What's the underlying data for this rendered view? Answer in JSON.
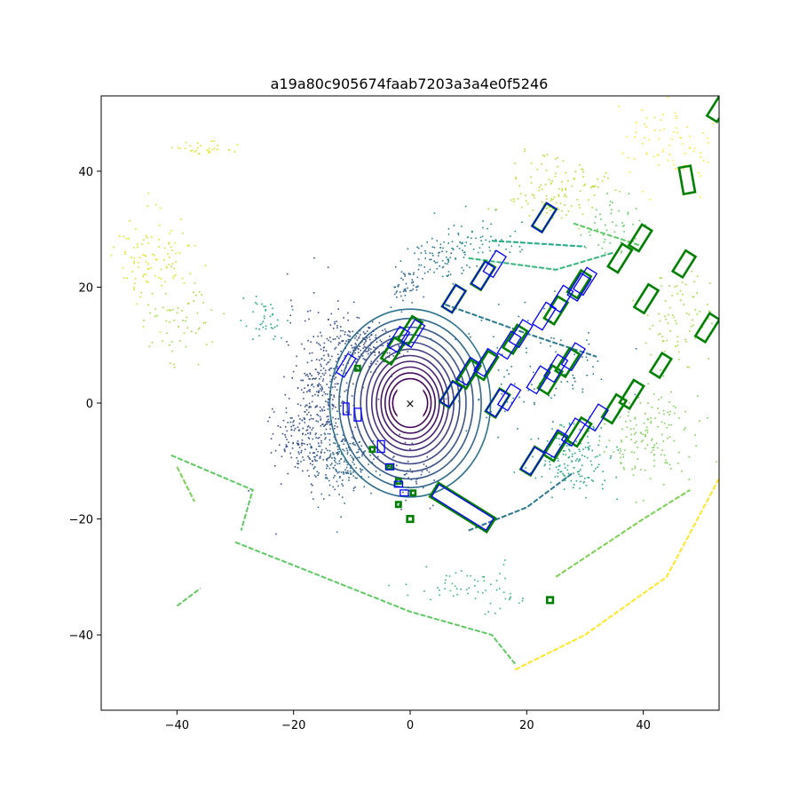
{
  "chart_data": {
    "type": "scatter",
    "title": "a19a80c905674faab7203a3a4e0f5246",
    "xlabel": "",
    "ylabel": "",
    "xlim": [
      -53,
      53
    ],
    "ylim": [
      -53,
      53
    ],
    "x_ticks": [
      -40,
      -20,
      0,
      20,
      40
    ],
    "y_ticks": [
      -40,
      -20,
      0,
      20,
      40
    ],
    "x_tick_labels": [
      "−40",
      "−20",
      "0",
      "20",
      "40"
    ],
    "y_tick_labels": [
      "−40",
      "−20",
      "0",
      "20",
      "40"
    ],
    "grid": false,
    "colormap": [
      "#440154",
      "#3b528b",
      "#21918c",
      "#5ec962",
      "#fde725"
    ],
    "ego_marker": {
      "x": 0,
      "y": 0,
      "symbol": "×"
    },
    "rings": [
      {
        "rx": 3,
        "ry": 3.3
      },
      {
        "rx": 3.6,
        "ry": 4.2
      },
      {
        "rx": 4.3,
        "ry": 5.2
      },
      {
        "rx": 5.0,
        "ry": 6.2
      },
      {
        "rx": 5.8,
        "ry": 7.2
      },
      {
        "rx": 6.6,
        "ry": 8.2
      },
      {
        "rx": 7.5,
        "ry": 9.3
      },
      {
        "rx": 8.5,
        "ry": 10.5
      },
      {
        "rx": 9.6,
        "ry": 11.8
      },
      {
        "rx": 10.8,
        "ry": 13.1
      },
      {
        "rx": 12.2,
        "ry": 14.6
      },
      {
        "rx": 13.8,
        "ry": 16.2
      }
    ],
    "wall_lines": [
      {
        "points": [
          [
            -30,
            -24
          ],
          [
            -15,
            -30
          ],
          [
            0,
            -36
          ],
          [
            14,
            -40
          ],
          [
            18,
            -45
          ]
        ],
        "color": "#5ec962"
      },
      {
        "points": [
          [
            18,
            -46
          ],
          [
            30,
            -40
          ],
          [
            44,
            -30
          ],
          [
            53,
            -13
          ]
        ],
        "color": "#fde725"
      },
      {
        "points": [
          [
            -41,
            -9
          ],
          [
            -27,
            -15
          ],
          [
            -29,
            -22
          ]
        ],
        "color": "#5ec962"
      },
      {
        "points": [
          [
            -40,
            -11
          ],
          [
            -37,
            -17
          ]
        ],
        "color": "#7ad151"
      },
      {
        "points": [
          [
            25,
            -30
          ],
          [
            40,
            -20
          ],
          [
            48,
            -15
          ]
        ],
        "color": "#7ad151"
      },
      {
        "points": [
          [
            -40,
            -35
          ],
          [
            -36,
            -32
          ]
        ],
        "color": "#5ec962"
      },
      {
        "points": [
          [
            6,
            17
          ],
          [
            20,
            12
          ],
          [
            32,
            8
          ]
        ],
        "color": "#2a788e"
      },
      {
        "points": [
          [
            10,
            25
          ],
          [
            25,
            23
          ],
          [
            35,
            26
          ]
        ],
        "color": "#35b779"
      },
      {
        "points": [
          [
            14,
            28
          ],
          [
            30,
            27
          ]
        ],
        "color": "#22a884"
      },
      {
        "points": [
          [
            10,
            -22
          ],
          [
            20,
            -18
          ],
          [
            28,
            -12
          ]
        ],
        "color": "#2a788e"
      },
      {
        "points": [
          [
            28,
            31
          ],
          [
            40,
            27
          ]
        ],
        "color": "#5ec962"
      }
    ],
    "point_clusters": [
      {
        "cx": -15,
        "cy": 2,
        "sx": 3,
        "sy": 7,
        "n": 350,
        "color": "#3b528b"
      },
      {
        "cx": -12,
        "cy": -10,
        "sx": 3,
        "sy": 3,
        "n": 200,
        "color": "#31688e"
      },
      {
        "cx": -8,
        "cy": 10,
        "sx": 3,
        "sy": 2,
        "n": 180,
        "color": "#3b528b"
      },
      {
        "cx": -20,
        "cy": -6,
        "sx": 2,
        "sy": 3,
        "n": 100,
        "color": "#3b528b"
      },
      {
        "cx": 5,
        "cy": 25,
        "sx": 3,
        "sy": 2,
        "n": 80,
        "color": "#2a788e"
      },
      {
        "cx": 12,
        "cy": 28,
        "sx": 4,
        "sy": 2,
        "n": 60,
        "color": "#21918c"
      },
      {
        "cx": -1,
        "cy": 20,
        "sx": 1.5,
        "sy": 1.5,
        "n": 50,
        "color": "#31688e"
      },
      {
        "cx": 25,
        "cy": 37,
        "sx": 4,
        "sy": 3,
        "n": 120,
        "color": "#b5de2b"
      },
      {
        "cx": -44,
        "cy": 25,
        "sx": 3,
        "sy": 4,
        "n": 100,
        "color": "#dde318"
      },
      {
        "cx": -40,
        "cy": 15,
        "sx": 3,
        "sy": 4,
        "n": 60,
        "color": "#a0da39"
      },
      {
        "cx": -25,
        "cy": 15,
        "sx": 2,
        "sy": 2,
        "n": 40,
        "color": "#22a884"
      },
      {
        "cx": 28,
        "cy": -10,
        "sx": 4,
        "sy": 3,
        "n": 150,
        "color": "#22a884"
      },
      {
        "cx": 42,
        "cy": -5,
        "sx": 4,
        "sy": 4,
        "n": 150,
        "color": "#7ad151"
      },
      {
        "cx": 46,
        "cy": 15,
        "sx": 3,
        "sy": 4,
        "n": 80,
        "color": "#a0da39"
      },
      {
        "cx": 45,
        "cy": 45,
        "sx": 4,
        "sy": 4,
        "n": 80,
        "color": "#fde725"
      },
      {
        "cx": -35,
        "cy": 44,
        "sx": 3,
        "sy": 0.5,
        "n": 30,
        "color": "#dde318"
      },
      {
        "cx": 10,
        "cy": -32,
        "sx": 5,
        "sy": 2,
        "n": 60,
        "color": "#35b779"
      },
      {
        "cx": 0,
        "cy": -12,
        "sx": 2,
        "sy": 3,
        "n": 50,
        "color": "#3b528b"
      },
      {
        "cx": 35,
        "cy": 30,
        "sx": 3,
        "sy": 3,
        "n": 50,
        "color": "#5ec962"
      },
      {
        "cx": 20,
        "cy": 5,
        "sx": 8,
        "sy": 5,
        "n": 100,
        "color": "#2a788e"
      }
    ],
    "gt_boxes": [
      {
        "x": 23,
        "y": 32,
        "w": 2.0,
        "l": 4.6,
        "yaw": 58
      },
      {
        "x": 12.5,
        "y": 22,
        "w": 2.0,
        "l": 4.6,
        "yaw": 58
      },
      {
        "x": 7.5,
        "y": 18,
        "w": 2.0,
        "l": 4.4,
        "yaw": 58
      },
      {
        "x": 25,
        "y": 16,
        "w": 2.0,
        "l": 4.4,
        "yaw": 58
      },
      {
        "x": 29,
        "y": 20.5,
        "w": 2.0,
        "l": 4.4,
        "yaw": 58
      },
      {
        "x": 0,
        "y": 12.5,
        "w": 2.0,
        "l": 4.6,
        "yaw": 58
      },
      {
        "x": -3,
        "y": 9,
        "w": 2.0,
        "l": 4.2,
        "yaw": 58
      },
      {
        "x": 10,
        "y": 5,
        "w": 2.0,
        "l": 4.6,
        "yaw": 58
      },
      {
        "x": 13,
        "y": 6.5,
        "w": 2.0,
        "l": 4.6,
        "yaw": 58
      },
      {
        "x": 18,
        "y": 11,
        "w": 2.0,
        "l": 4.6,
        "yaw": 58
      },
      {
        "x": 15,
        "y": 0,
        "w": 2.0,
        "l": 4.6,
        "yaw": 58
      },
      {
        "x": 24,
        "y": 4,
        "w": 2.0,
        "l": 4.6,
        "yaw": 58
      },
      {
        "x": 27,
        "y": 7,
        "w": 2.0,
        "l": 4.6,
        "yaw": 58
      },
      {
        "x": 7,
        "y": 1.5,
        "w": 1.9,
        "l": 4.2,
        "yaw": 58
      },
      {
        "x": 21,
        "y": -10,
        "w": 2.0,
        "l": 4.6,
        "yaw": 58
      },
      {
        "x": 25,
        "y": -7.5,
        "w": 2.0,
        "l": 4.6,
        "yaw": 58
      },
      {
        "x": 29,
        "y": -5,
        "w": 2.0,
        "l": 4.6,
        "yaw": 58
      },
      {
        "x": 35,
        "y": -1,
        "w": 2.0,
        "l": 4.6,
        "yaw": 58
      },
      {
        "x": 38,
        "y": 1.5,
        "w": 2.0,
        "l": 4.6,
        "yaw": 58
      },
      {
        "x": 40.5,
        "y": 18,
        "w": 2.0,
        "l": 4.6,
        "yaw": 58
      },
      {
        "x": 36,
        "y": 25,
        "w": 2.0,
        "l": 4.6,
        "yaw": 58
      },
      {
        "x": 39.5,
        "y": 28.5,
        "w": 2.0,
        "l": 4.2,
        "yaw": 58
      },
      {
        "x": 47,
        "y": 24,
        "w": 2.0,
        "l": 4.2,
        "yaw": 58
      },
      {
        "x": 43,
        "y": 6.5,
        "w": 1.9,
        "l": 3.8,
        "yaw": 58
      },
      {
        "x": 51,
        "y": 13,
        "w": 2.0,
        "l": 4.6,
        "yaw": 58
      },
      {
        "x": 47.5,
        "y": 38.5,
        "w": 2.0,
        "l": 4.6,
        "yaw": 100
      },
      {
        "x": 53,
        "y": 51,
        "w": 2.0,
        "l": 4.6,
        "yaw": 58
      },
      {
        "x": 9,
        "y": -18,
        "w": 2.8,
        "l": 11.5,
        "yaw": -32
      },
      {
        "x": -6.5,
        "y": -8,
        "w": 0.8,
        "l": 0.8,
        "yaw": 0
      },
      {
        "x": -3.5,
        "y": -11,
        "w": 0.8,
        "l": 0.8,
        "yaw": 0
      },
      {
        "x": -2,
        "y": -13.5,
        "w": 0.8,
        "l": 0.8,
        "yaw": 0
      },
      {
        "x": 0,
        "y": -20,
        "w": 1.0,
        "l": 1.0,
        "yaw": 0
      },
      {
        "x": -2,
        "y": -17.5,
        "w": 0.8,
        "l": 0.8,
        "yaw": 0
      },
      {
        "x": 0.5,
        "y": -15.5,
        "w": 0.8,
        "l": 0.8,
        "yaw": 0
      },
      {
        "x": -9,
        "y": 6,
        "w": 0.8,
        "l": 0.8,
        "yaw": 0
      },
      {
        "x": 24,
        "y": -34,
        "w": 1.0,
        "l": 1.0,
        "yaw": 0
      }
    ],
    "pred_boxes": [
      {
        "x": 23,
        "y": 32,
        "w": 2.0,
        "l": 4.8,
        "yaw": 58
      },
      {
        "x": 14.5,
        "y": 24,
        "w": 2.0,
        "l": 4.2,
        "yaw": 58
      },
      {
        "x": 12.5,
        "y": 22,
        "w": 2.0,
        "l": 4.4,
        "yaw": 58
      },
      {
        "x": 7.5,
        "y": 18,
        "w": 2.0,
        "l": 4.4,
        "yaw": 58
      },
      {
        "x": 23,
        "y": 15,
        "w": 2.0,
        "l": 4.4,
        "yaw": 58
      },
      {
        "x": 26,
        "y": 18,
        "w": 2.0,
        "l": 4.2,
        "yaw": 58
      },
      {
        "x": 30,
        "y": 21,
        "w": 2.0,
        "l": 4.4,
        "yaw": 58
      },
      {
        "x": 29,
        "y": 20,
        "w": 2.0,
        "l": 4.4,
        "yaw": 58
      },
      {
        "x": 0.5,
        "y": 12,
        "w": 2.0,
        "l": 4.4,
        "yaw": 58
      },
      {
        "x": -2,
        "y": 11,
        "w": 2.0,
        "l": 4.0,
        "yaw": 58
      },
      {
        "x": 10,
        "y": 5.5,
        "w": 2.0,
        "l": 4.4,
        "yaw": 58
      },
      {
        "x": 13,
        "y": 7,
        "w": 2.0,
        "l": 4.4,
        "yaw": 58
      },
      {
        "x": 17,
        "y": 10,
        "w": 2.0,
        "l": 4.4,
        "yaw": 58
      },
      {
        "x": 19,
        "y": 12,
        "w": 2.0,
        "l": 4.4,
        "yaw": 58
      },
      {
        "x": 15,
        "y": 0,
        "w": 2.0,
        "l": 4.4,
        "yaw": 58
      },
      {
        "x": 17,
        "y": 1,
        "w": 2.0,
        "l": 4.2,
        "yaw": 58
      },
      {
        "x": 22,
        "y": 4,
        "w": 2.0,
        "l": 4.4,
        "yaw": 58
      },
      {
        "x": 25,
        "y": 6,
        "w": 2.0,
        "l": 4.4,
        "yaw": 58
      },
      {
        "x": 28,
        "y": 8,
        "w": 2.0,
        "l": 4.4,
        "yaw": 58
      },
      {
        "x": 7,
        "y": 1.5,
        "w": 1.9,
        "l": 4.0,
        "yaw": 58
      },
      {
        "x": 21,
        "y": -10,
        "w": 2.0,
        "l": 4.4,
        "yaw": 58
      },
      {
        "x": 25,
        "y": -7,
        "w": 2.0,
        "l": 4.4,
        "yaw": 58
      },
      {
        "x": 28,
        "y": -5,
        "w": 2.0,
        "l": 4.4,
        "yaw": 58
      },
      {
        "x": 32,
        "y": -2.5,
        "w": 2.0,
        "l": 4.2,
        "yaw": 58
      },
      {
        "x": 9,
        "y": -18,
        "w": 2.4,
        "l": 11,
        "yaw": -32
      },
      {
        "x": -11,
        "y": 6.5,
        "w": 1.6,
        "l": 3.8,
        "yaw": 58
      },
      {
        "x": -11,
        "y": -1,
        "w": 1.0,
        "l": 2.0,
        "yaw": 90
      },
      {
        "x": -9,
        "y": -2,
        "w": 1.2,
        "l": 2.2,
        "yaw": 90
      },
      {
        "x": -5,
        "y": -7.5,
        "w": 1.2,
        "l": 2.0,
        "yaw": 90
      },
      {
        "x": -3.5,
        "y": -11,
        "w": 1.0,
        "l": 1.4,
        "yaw": 0
      },
      {
        "x": -2,
        "y": -14,
        "w": 1.0,
        "l": 1.4,
        "yaw": 0
      },
      {
        "x": -1,
        "y": -15.5,
        "w": 1.0,
        "l": 1.4,
        "yaw": 0
      }
    ],
    "gt_color": "#008000",
    "pred_color": "#0000ff"
  }
}
